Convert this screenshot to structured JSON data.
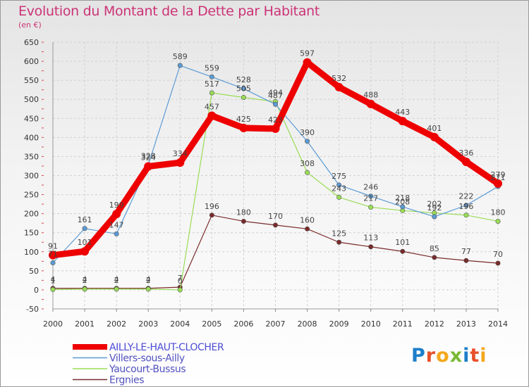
{
  "title": "Evolution du Montant de la Dette par Habitant",
  "subtitle": "(en €)",
  "brand": {
    "letters": [
      "P",
      "r",
      "o",
      "x",
      "i",
      "t",
      "i"
    ],
    "colors": [
      "#1d7fc9",
      "#e8502a",
      "#f4a81c",
      "#7ab934",
      "#1d7fc9",
      "#e8502a",
      "#f4a81c"
    ]
  },
  "chart_data": {
    "type": "line",
    "title": "Evolution du Montant de la Dette par Habitant",
    "ylabel": "(en €)",
    "ylim": [
      -50,
      650
    ],
    "yticks": [
      -50,
      0,
      50,
      100,
      150,
      200,
      250,
      300,
      350,
      400,
      450,
      500,
      550,
      600,
      650
    ],
    "x": [
      "2000",
      "2001",
      "2002",
      "2003",
      "2004",
      "2005",
      "2006",
      "2007",
      "2008",
      "2009",
      "2010",
      "2011",
      "2012",
      "2013",
      "2014"
    ],
    "grid": true,
    "legend_position": "bottom-left",
    "series": [
      {
        "name": "AILLY-LE-HAUT-CLOCHER",
        "color": "#ee0000",
        "values": [
          91,
          101,
          199,
          324,
          334,
          457,
          425,
          423,
          597,
          532,
          488,
          443,
          401,
          336,
          279
        ],
        "labels": [
          "91",
          "101",
          "199",
          "324",
          "334",
          "457",
          "425",
          "423",
          "597",
          "532",
          "488",
          "443",
          "401",
          "336",
          "279"
        ]
      },
      {
        "name": "Villers-sous-Ailly",
        "color": "#5b9bd5",
        "values": [
          71,
          161,
          147,
          328,
          589,
          559,
          528,
          487,
          390,
          275,
          246,
          218,
          192,
          222,
          271
        ],
        "labels": [
          "71",
          "161",
          "147",
          "328",
          "589",
          "559",
          "528",
          "487",
          "390",
          "275",
          "246",
          "218",
          "192",
          "222",
          "271"
        ]
      },
      {
        "name": "Yaucourt-Bussus",
        "color": "#99dd55",
        "values": [
          1,
          2,
          2,
          2,
          0,
          517,
          505,
          494,
          308,
          243,
          217,
          208,
          202,
          196,
          180
        ],
        "labels": [
          "1",
          "2",
          "2",
          "2",
          "0",
          "517",
          "505",
          "494",
          "308",
          "243",
          "217",
          "208",
          "202",
          "196",
          "180"
        ]
      },
      {
        "name": "Ergnies",
        "color": "#7a2a2a",
        "values": [
          4,
          4,
          4,
          4,
          7,
          196,
          180,
          170,
          160,
          125,
          113,
          101,
          85,
          77,
          70
        ],
        "labels": [
          "4",
          "4",
          "4",
          "4",
          "7",
          "196",
          "180",
          "170",
          "160",
          "125",
          "113",
          "101",
          "85",
          "77",
          "70"
        ]
      }
    ]
  }
}
